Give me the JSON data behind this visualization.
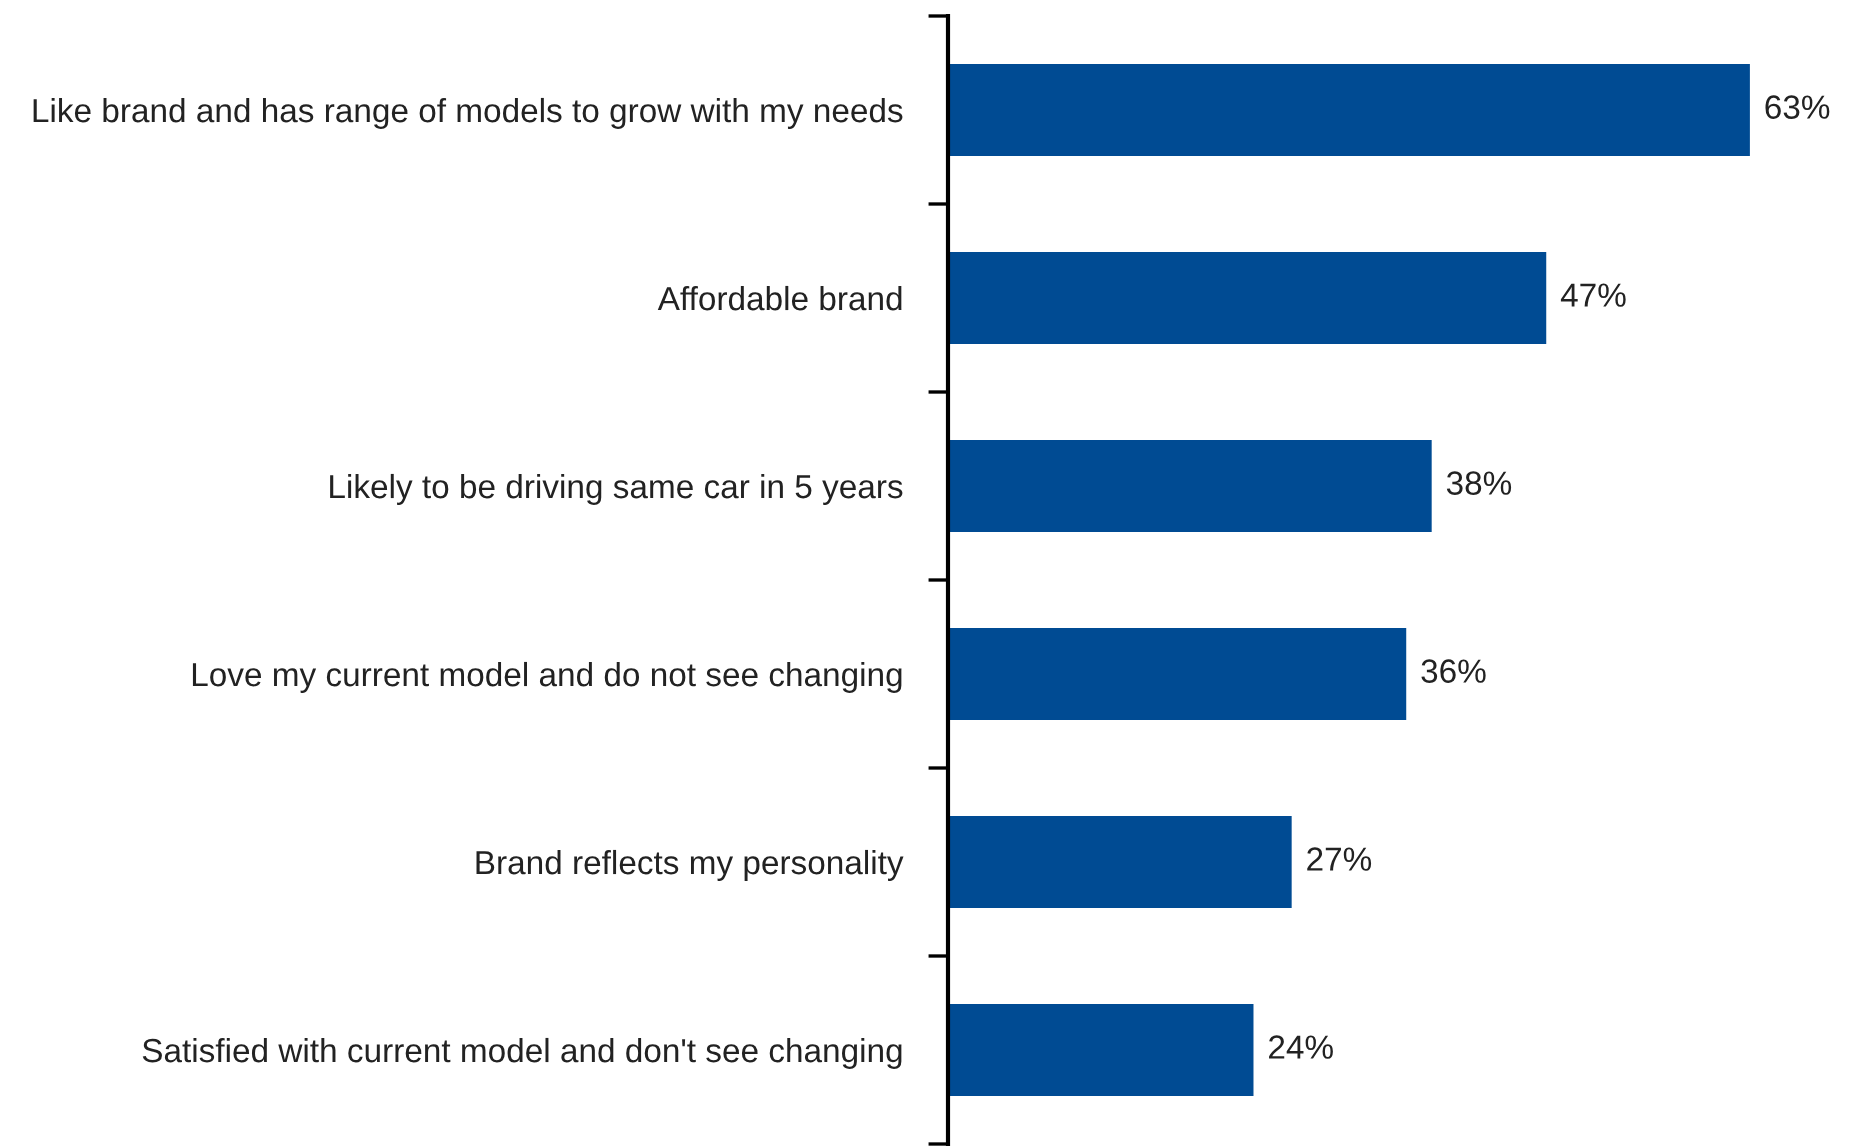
{
  "chart_data": {
    "type": "bar",
    "orientation": "horizontal",
    "categories": [
      "Like brand and has range of models to grow with my needs",
      "Affordable brand",
      "Likely to be driving same car in 5 years",
      "Love my current model and do not see changing",
      "Brand reflects my personality",
      "Satisfied with current model and don't see changing"
    ],
    "values": [
      63,
      47,
      38,
      36,
      27,
      24
    ],
    "value_labels": [
      "63%",
      "47%",
      "38%",
      "36%",
      "27%",
      "24%"
    ],
    "color": "#004b93",
    "grid": false,
    "legend": false,
    "tick_labels": "y"
  }
}
